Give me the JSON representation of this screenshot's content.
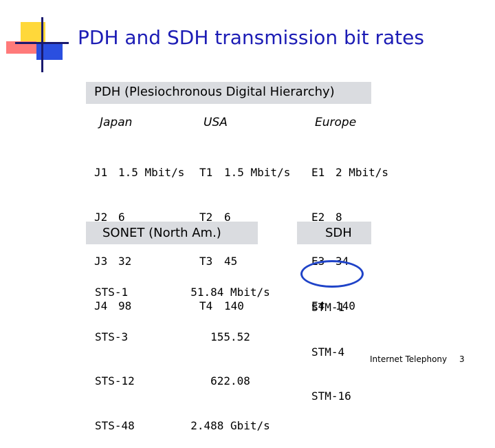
{
  "title": "PDH and SDH transmission bit rates",
  "pdh_heading": "PDH (Plesiochronous Digital Hierarchy)",
  "regions": [
    {
      "name": "Japan",
      "codes": [
        "J1",
        "J2",
        "J3",
        "J4"
      ],
      "rates": [
        "1.5 Mbit/s",
        "6",
        "32",
        "98"
      ]
    },
    {
      "name": "USA",
      "codes": [
        "T1",
        "T2",
        "T3",
        "T4"
      ],
      "rates": [
        "1.5 Mbit/s",
        "6",
        "45",
        "140"
      ]
    },
    {
      "name": "Europe",
      "codes": [
        "E1",
        "E2",
        "E3",
        "E4"
      ],
      "rates": [
        "2 Mbit/s",
        "8",
        "34",
        "140"
      ]
    }
  ],
  "sonet_heading": "SONET (North Am.)",
  "sdh_heading": "SDH",
  "sonet_levels": [
    "STS-1",
    "STS-3",
    "STS-12",
    "STS-48"
  ],
  "sonet_rates": [
    "51.84 Mbit/s",
    "155.52",
    "622.08",
    "2.488 Gbit/s"
  ],
  "sdh_levels": [
    "STM-1",
    "STM-4",
    "STM-16"
  ],
  "footer": {
    "label": "Internet Telephony",
    "page": "3"
  },
  "colors": {
    "title": "#1c1cb5",
    "band": "#dadce0",
    "circle": "#1f43c8"
  }
}
